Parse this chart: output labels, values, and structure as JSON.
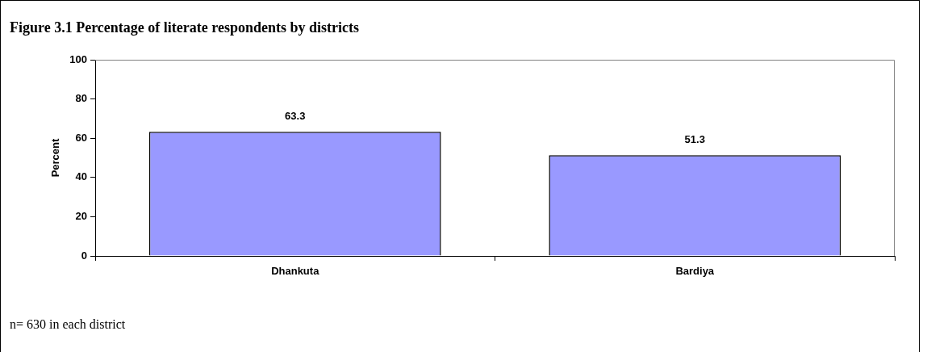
{
  "chart_data": {
    "type": "bar",
    "title": "Figure 3.1 Percentage of literate respondents by districts",
    "categories": [
      "Dhankuta",
      "Bardiya"
    ],
    "values": [
      63.3,
      51.3
    ],
    "color": "#9999ff",
    "ylabel": "Percent",
    "ylim": [
      0,
      100
    ],
    "yticks": [
      0,
      20,
      40,
      60,
      80,
      100
    ],
    "grid": false,
    "legend": false,
    "data_labels": true,
    "annotations": [
      "n= 630 in each district"
    ]
  }
}
